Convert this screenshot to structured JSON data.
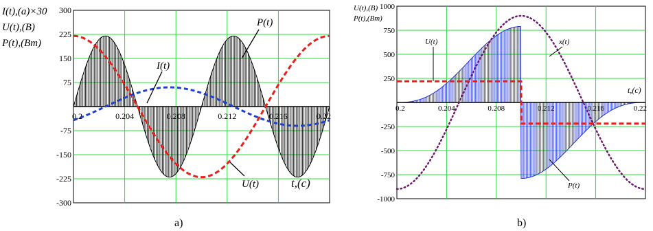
{
  "chart_data": [
    {
      "type": "line",
      "panel_label": "a)",
      "ylabel_lines": [
        "I(t),(a)×30",
        "U(t),(B)",
        "P(t),(Bm)"
      ],
      "xlabel": "t,(c)",
      "x_ticks": [
        "0.2",
        "0.204",
        "0.208",
        "0.212",
        "0.216",
        "0.22"
      ],
      "y_ticks": [
        "-300",
        "-225",
        "-150",
        "-75",
        "75",
        "150",
        "225",
        "300"
      ],
      "xlim": [
        0.2,
        0.22
      ],
      "ylim": [
        -300,
        300
      ],
      "grid": true,
      "series": [
        {
          "name": "I(t)",
          "color": "#1f3fcf",
          "style": "dashed",
          "amplitude": 60,
          "phase_deg": -45,
          "frequency_hz": 50
        },
        {
          "name": "U(t)",
          "color": "#e8201a",
          "style": "dashed",
          "amplitude": 220,
          "phase_deg": 90,
          "frequency_hz": 50
        },
        {
          "name": "P(t)",
          "color": "#000000",
          "style": "hatched",
          "amplitude": 220,
          "frequency_hz": 100
        }
      ],
      "annotations": [
        "I(t)",
        "P(t)",
        "U(t)"
      ]
    },
    {
      "type": "line",
      "panel_label": "b)",
      "ylabel_lines": [
        "U(t),(B)",
        "P(t),(Bm)"
      ],
      "xlabel": "t,(c)",
      "x_ticks": [
        "0.2",
        "0.204",
        "0.208",
        "0.212",
        "0.216",
        "0.22"
      ],
      "y_ticks": [
        "-1000",
        "-750",
        "-500",
        "-250",
        "250",
        "500",
        "750",
        "1000"
      ],
      "xlim": [
        0.2,
        0.22
      ],
      "ylim": [
        -1000,
        1000
      ],
      "grid": true,
      "series": [
        {
          "name": "U(t)",
          "color": "#e8201a",
          "style": "dashed",
          "shape": "square",
          "amplitude": 220,
          "switch_time": 0.21
        },
        {
          "name": "x(t)",
          "color": "#6a1a6a",
          "style": "dotted",
          "amplitude": 900,
          "phase_deg": -90,
          "frequency_hz": 50
        },
        {
          "name": "P(t)",
          "color": "#2233cc",
          "style": "hatched",
          "peak": 790
        }
      ],
      "annotations": [
        "U(t)",
        "x(t)",
        "P(t)"
      ]
    }
  ]
}
